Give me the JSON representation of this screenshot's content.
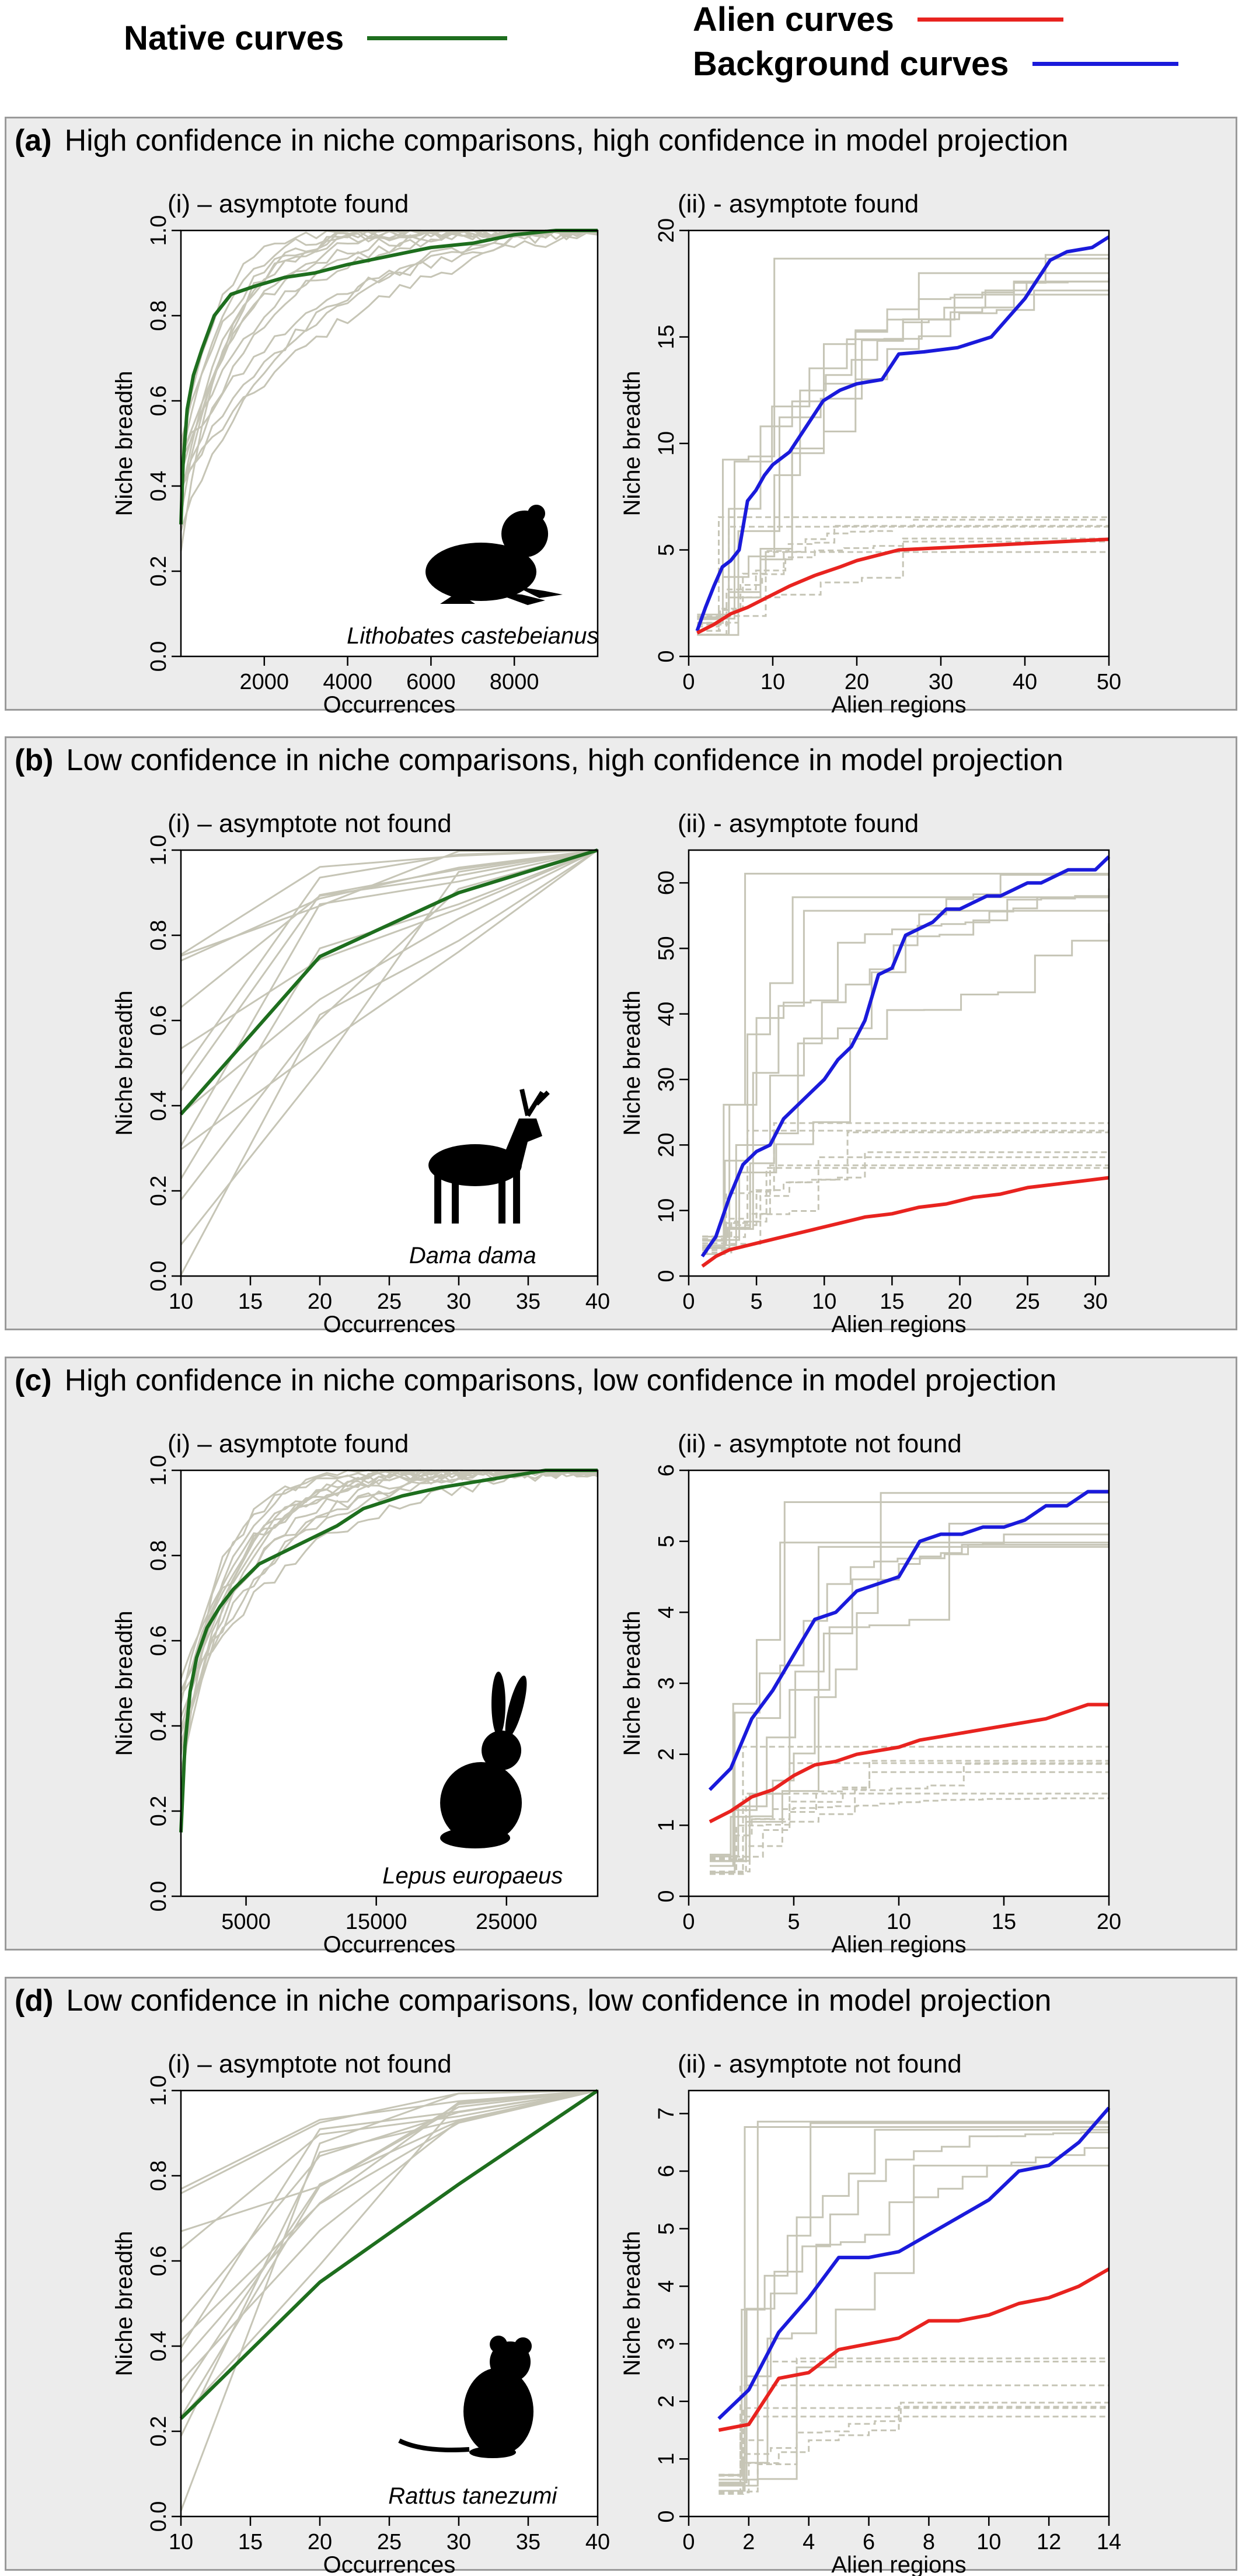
{
  "legend": {
    "native": {
      "label": "Native curves",
      "color": "#1e6e1e"
    },
    "alien": {
      "label": "Alien curves",
      "color": "#e8231f"
    },
    "background": {
      "label": "Background curves",
      "color": "#1a1adb"
    }
  },
  "colors": {
    "grey_curves": "#c6c5b6",
    "axis": "#000000",
    "panel_bg": "#ececec"
  },
  "panels": [
    {
      "letter": "(a)",
      "title": "High confidence in niche comparisons, high confidence in model projection",
      "left_subtitle": "(i) – asymptote found",
      "right_subtitle": "(ii) -  asymptote found",
      "species": "Lithobates castebeianus",
      "icon": "frog-icon"
    },
    {
      "letter": "(b)",
      "title": "Low confidence in niche comparisons, high confidence in model projection",
      "left_subtitle": "(i) – asymptote not found",
      "right_subtitle": "(ii) -  asymptote found",
      "species": "Dama dama",
      "icon": "deer-icon"
    },
    {
      "letter": "(c)",
      "title": "High confidence in niche comparisons, low confidence in model projection",
      "left_subtitle": "(i) – asymptote found",
      "right_subtitle": "(ii) -  asymptote not found",
      "species": "Lepus europaeus",
      "icon": "hare-icon"
    },
    {
      "letter": "(d)",
      "title": "Low confidence in niche comparisons, low confidence in model projection",
      "left_subtitle": "(i) – asymptote not found",
      "right_subtitle": "(ii) -  asymptote not found",
      "species": "Rattus tanezumi",
      "icon": "rat-icon"
    }
  ],
  "chart_data": [
    {
      "type": "line",
      "panel": "(a)",
      "part": "(i)",
      "xlabel": "Occurrences",
      "ylabel": "Niche breadth",
      "xlim": [
        0,
        10000
      ],
      "ylim": [
        0,
        1
      ],
      "xticks": [
        2000,
        4000,
        6000,
        8000
      ],
      "yticks": [
        0.0,
        0.2,
        0.4,
        0.6,
        0.8,
        1.0
      ],
      "series": [
        {
          "name": "Native curves",
          "x": [
            0,
            50,
            150,
            300,
            500,
            800,
            1200,
            1800,
            2500,
            3200,
            4000,
            5000,
            6000,
            7000,
            8000,
            9000,
            10000
          ],
          "y": [
            0.31,
            0.45,
            0.58,
            0.66,
            0.72,
            0.8,
            0.85,
            0.87,
            0.89,
            0.9,
            0.92,
            0.94,
            0.96,
            0.97,
            0.99,
            1.0,
            1.0
          ]
        }
      ],
      "grey_curves_shape": "saturating"
    },
    {
      "type": "line",
      "panel": "(a)",
      "part": "(ii)",
      "xlabel": "Alien regions",
      "ylabel": "Niche breadth",
      "xlim": [
        0,
        50
      ],
      "ylim": [
        0,
        20
      ],
      "xticks": [
        0,
        10,
        20,
        30,
        40,
        50
      ],
      "yticks": [
        0,
        5,
        10,
        15,
        20
      ],
      "series": [
        {
          "name": "Background curves",
          "x": [
            1,
            2,
            3,
            4,
            5,
            6,
            7,
            8,
            9,
            10,
            12,
            14,
            16,
            18,
            20,
            23,
            25,
            28,
            32,
            36,
            40,
            43,
            45,
            48,
            50
          ],
          "y": [
            1.2,
            2.3,
            3.3,
            4.2,
            4.5,
            5.0,
            7.3,
            7.8,
            8.5,
            9.0,
            9.6,
            10.8,
            12.0,
            12.5,
            12.8,
            13.0,
            14.2,
            14.3,
            14.5,
            15.0,
            16.8,
            18.6,
            19.0,
            19.2,
            19.7
          ]
        },
        {
          "name": "Alien curves",
          "x": [
            1,
            3,
            5,
            7,
            10,
            12,
            15,
            18,
            20,
            23,
            25,
            30,
            35,
            40,
            45,
            50
          ],
          "y": [
            1.1,
            1.5,
            2.0,
            2.3,
            2.9,
            3.3,
            3.8,
            4.2,
            4.5,
            4.8,
            5.0,
            5.1,
            5.2,
            5.3,
            5.4,
            5.5
          ]
        }
      ],
      "grey_curves_shape": "stepped"
    },
    {
      "type": "line",
      "panel": "(b)",
      "part": "(i)",
      "xlabel": "Occurrences",
      "ylabel": "Niche breadth",
      "xlim": [
        10,
        40
      ],
      "ylim": [
        0,
        1
      ],
      "xticks": [
        10,
        15,
        20,
        25,
        30,
        35,
        40
      ],
      "yticks": [
        0.0,
        0.2,
        0.4,
        0.6,
        0.8,
        1.0
      ],
      "series": [
        {
          "name": "Native curves",
          "x": [
            10,
            20,
            30,
            40
          ],
          "y": [
            0.38,
            0.75,
            0.9,
            1.0
          ]
        }
      ],
      "grey_curves_shape": "linear"
    },
    {
      "type": "line",
      "panel": "(b)",
      "part": "(ii)",
      "xlabel": "Alien regions",
      "ylabel": "Niche breadth",
      "xlim": [
        0,
        31
      ],
      "ylim": [
        0,
        65
      ],
      "xticks": [
        0,
        5,
        10,
        15,
        20,
        25,
        30
      ],
      "yticks": [
        0,
        10,
        20,
        30,
        40,
        50,
        60
      ],
      "series": [
        {
          "name": "Background curves",
          "x": [
            1,
            2,
            3,
            4,
            5,
            6,
            7,
            8,
            9,
            10,
            11,
            12,
            13,
            14,
            15,
            16,
            17,
            18,
            19,
            20,
            21,
            22,
            23,
            24,
            25,
            26,
            27,
            28,
            29,
            30,
            31
          ],
          "y": [
            3,
            6,
            12,
            17,
            19,
            20,
            24,
            26,
            28,
            30,
            33,
            35,
            39,
            46,
            47,
            52,
            53,
            54,
            56,
            56,
            57,
            58,
            58,
            59,
            60,
            60,
            61,
            62,
            62,
            62,
            64
          ]
        },
        {
          "name": "Alien curves",
          "x": [
            1,
            2,
            3,
            5,
            7,
            9,
            11,
            13,
            15,
            17,
            19,
            21,
            23,
            25,
            27,
            29,
            31
          ],
          "y": [
            1.5,
            3,
            4,
            5,
            6,
            7,
            8,
            9,
            9.5,
            10.5,
            11,
            12,
            12.5,
            13.5,
            14,
            14.5,
            15
          ]
        }
      ],
      "grey_curves_shape": "stepped"
    },
    {
      "type": "line",
      "panel": "(c)",
      "part": "(i)",
      "xlabel": "Occurrences",
      "ylabel": "Niche breadth",
      "xlim": [
        0,
        32000
      ],
      "ylim": [
        0,
        1
      ],
      "xticks": [
        5000,
        15000,
        25000
      ],
      "yticks": [
        0.0,
        0.2,
        0.4,
        0.6,
        0.8,
        1.0
      ],
      "series": [
        {
          "name": "Native curves",
          "x": [
            0,
            300,
            700,
            1200,
            2000,
            3000,
            4000,
            5000,
            6000,
            8000,
            10000,
            12000,
            14000,
            17000,
            20000,
            24000,
            28000,
            32000
          ],
          "y": [
            0.15,
            0.35,
            0.48,
            0.56,
            0.63,
            0.68,
            0.72,
            0.75,
            0.78,
            0.81,
            0.84,
            0.87,
            0.91,
            0.94,
            0.96,
            0.98,
            1.0,
            1.0
          ]
        }
      ],
      "grey_curves_shape": "saturating"
    },
    {
      "type": "line",
      "panel": "(c)",
      "part": "(ii)",
      "xlabel": "Alien regions",
      "ylabel": "Niche breadth",
      "xlim": [
        0,
        20
      ],
      "ylim": [
        0,
        6
      ],
      "xticks": [
        0,
        5,
        10,
        15,
        20
      ],
      "yticks": [
        0,
        1,
        2,
        3,
        4,
        5,
        6
      ],
      "series": [
        {
          "name": "Background curves",
          "x": [
            1,
            2,
            3,
            4,
            5,
            6,
            7,
            8,
            9,
            10,
            11,
            12,
            13,
            14,
            15,
            16,
            17,
            18,
            19,
            20
          ],
          "y": [
            1.5,
            1.8,
            2.5,
            2.9,
            3.4,
            3.9,
            4.0,
            4.3,
            4.4,
            4.5,
            5.0,
            5.1,
            5.1,
            5.2,
            5.2,
            5.3,
            5.5,
            5.5,
            5.7,
            5.7
          ]
        },
        {
          "name": "Alien curves",
          "x": [
            1,
            2,
            3,
            4,
            5,
            6,
            7,
            8,
            9,
            10,
            11,
            12,
            13,
            14,
            15,
            16,
            17,
            18,
            19,
            20
          ],
          "y": [
            1.05,
            1.2,
            1.4,
            1.5,
            1.7,
            1.85,
            1.9,
            2.0,
            2.05,
            2.1,
            2.2,
            2.25,
            2.3,
            2.35,
            2.4,
            2.45,
            2.5,
            2.6,
            2.7,
            2.7
          ]
        }
      ],
      "grey_curves_shape": "stepped"
    },
    {
      "type": "line",
      "panel": "(d)",
      "part": "(i)",
      "xlabel": "Occurrences",
      "ylabel": "Niche breadth",
      "xlim": [
        10,
        40
      ],
      "ylim": [
        0,
        1
      ],
      "xticks": [
        10,
        15,
        20,
        25,
        30,
        35,
        40
      ],
      "yticks": [
        0.0,
        0.2,
        0.4,
        0.6,
        0.8,
        1.0
      ],
      "series": [
        {
          "name": "Native curves",
          "x": [
            10,
            20,
            30,
            40
          ],
          "y": [
            0.23,
            0.55,
            0.78,
            1.0
          ]
        }
      ],
      "grey_curves_shape": "linear"
    },
    {
      "type": "line",
      "panel": "(d)",
      "part": "(ii)",
      "xlabel": "Alien regions",
      "ylabel": "Niche breadth",
      "xlim": [
        0,
        14
      ],
      "ylim": [
        0,
        7.4
      ],
      "xticks": [
        0,
        2,
        4,
        6,
        8,
        10,
        12,
        14
      ],
      "yticks": [
        0,
        1,
        2,
        3,
        4,
        5,
        6,
        7
      ],
      "series": [
        {
          "name": "Background curves",
          "x": [
            1,
            2,
            3,
            4,
            5,
            6,
            7,
            8,
            9,
            10,
            11,
            12,
            13,
            14
          ],
          "y": [
            1.7,
            2.2,
            3.2,
            3.8,
            4.5,
            4.5,
            4.6,
            4.9,
            5.2,
            5.5,
            6.0,
            6.1,
            6.5,
            7.1
          ]
        },
        {
          "name": "Alien curves",
          "x": [
            1,
            2,
            3,
            4,
            5,
            6,
            7,
            8,
            9,
            10,
            11,
            12,
            13,
            14
          ],
          "y": [
            1.5,
            1.6,
            2.4,
            2.5,
            2.9,
            3.0,
            3.1,
            3.4,
            3.4,
            3.5,
            3.7,
            3.8,
            4.0,
            4.3
          ]
        }
      ],
      "grey_curves_shape": "stepped"
    }
  ]
}
